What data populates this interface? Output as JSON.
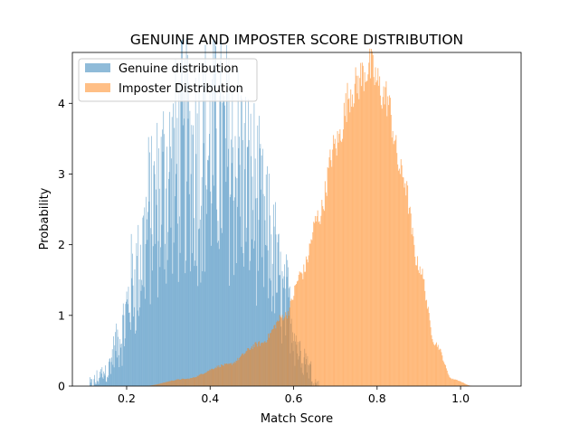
{
  "chart_data": {
    "type": "histogram",
    "title": "GENUINE AND IMPOSTER SCORE DISTRIBUTION",
    "xlabel": "Match Score",
    "ylabel": "Probability",
    "xlim": [
      0.07,
      1.145
    ],
    "ylim": [
      0,
      4.72
    ],
    "xticks": [
      0.2,
      0.4,
      0.6,
      0.8,
      1.0
    ],
    "xtick_labels": [
      "0.2",
      "0.4",
      "0.6",
      "0.8",
      "1.0"
    ],
    "yticks": [
      0,
      1,
      2,
      3,
      4
    ],
    "ytick_labels": [
      "0",
      "1",
      "2",
      "3",
      "4"
    ],
    "grid": false,
    "legend_position": "top-left",
    "series": [
      {
        "name": "Genuine distribution",
        "color": "#1f77b4",
        "alpha": 0.5,
        "bins": 400,
        "x": [
          0.11,
          0.15,
          0.18,
          0.22,
          0.26,
          0.3,
          0.34,
          0.38,
          0.42,
          0.46,
          0.5,
          0.54,
          0.58,
          0.62,
          0.66
        ],
        "density": [
          0.0,
          0.2,
          0.6,
          1.5,
          2.4,
          2.9,
          3.2,
          3.25,
          3.25,
          3.15,
          2.7,
          2.0,
          1.2,
          0.45,
          0.0
        ]
      },
      {
        "name": "Imposter Distribution",
        "color": "#ff7f0e",
        "alpha": 0.5,
        "bins": 400,
        "x": [
          0.24,
          0.34,
          0.44,
          0.52,
          0.58,
          0.62,
          0.66,
          0.7,
          0.74,
          0.78,
          0.82,
          0.86,
          0.9,
          0.94,
          0.98,
          1.03
        ],
        "density": [
          0.0,
          0.1,
          0.3,
          0.6,
          1.0,
          1.6,
          2.4,
          3.4,
          4.2,
          4.5,
          4.1,
          3.0,
          1.7,
          0.6,
          0.1,
          0.0
        ]
      }
    ]
  }
}
